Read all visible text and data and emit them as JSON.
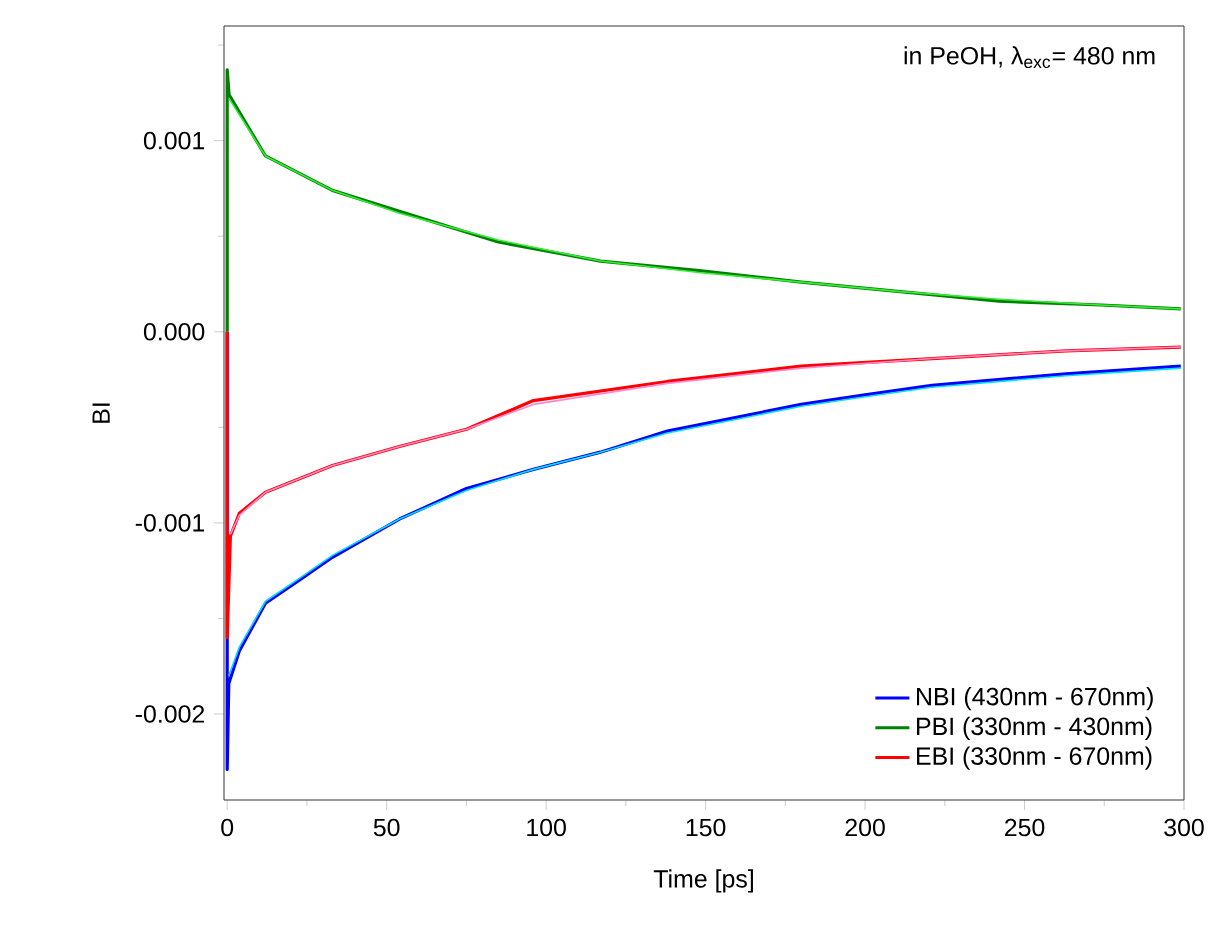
{
  "chart_data": {
    "type": "line",
    "xlabel": "Time [ps]",
    "ylabel": "BI",
    "annotations": [
      "in PeOH, λ$_{exc}$= 480 nm"
    ],
    "xlim": [
      -1,
      300
    ],
    "ylim": [
      -0.00245,
      0.0016
    ],
    "xticks": [
      0,
      {
        "value": 25,
        "label": null
      },
      50,
      {
        "value": 75,
        "label": null
      },
      100,
      {
        "value": 125,
        "label": null
      },
      150,
      {
        "value": 175,
        "label": null
      },
      200,
      {
        "value": 225,
        "label": null
      },
      250,
      {
        "value": 275,
        "label": null
      },
      300
    ],
    "yticks": [
      {
        "value": -0.002,
        "label": "-0.002"
      },
      {
        "value": -0.0015,
        "label": null
      },
      {
        "value": -0.001,
        "label": "-0.001"
      },
      {
        "value": -0.0005,
        "label": null
      },
      {
        "value": 0,
        "label": "0.000"
      },
      {
        "value": 0.0005,
        "label": null
      },
      {
        "value": 0.001,
        "label": "0.001"
      },
      {
        "value": 0.0015,
        "label": null
      }
    ],
    "legend": "bottom right",
    "series": [
      {
        "name": "NBI (430nm - 670nm)",
        "color": "#0000ff",
        "x": [
          0,
          0,
          0.5,
          3.8,
          12,
          22.6,
          33,
          54,
          75,
          96,
          117,
          138,
          159,
          180,
          200,
          221,
          263,
          299
        ],
        "values": [
          0,
          -0.00229,
          -0.00184,
          -0.00167,
          -0.00142,
          -0.0013,
          -0.00118,
          -0.00098,
          -0.00082,
          -0.00072,
          -0.00063,
          -0.00052,
          -0.00045,
          -0.00038,
          -0.00033,
          -0.00028,
          -0.00022,
          -0.00018
        ]
      },
      {
        "name": "PBI (330nm - 430nm)",
        "color": "#008000",
        "x": [
          0,
          0,
          0.6,
          12,
          33,
          54,
          85,
          117,
          148,
          180,
          211,
          242,
          274,
          299
        ],
        "values": [
          0,
          0.00137,
          0.00124,
          0.00092,
          0.00074,
          0.00063,
          0.00047,
          0.00037,
          0.00032,
          0.00026,
          0.00021,
          0.00016,
          0.00014,
          0.00012
        ]
      },
      {
        "name": "EBI (330nm - 670nm)",
        "color": "#ff0000",
        "x": [
          0,
          0,
          1,
          3.8,
          12,
          33,
          54,
          75,
          96,
          138,
          180,
          221,
          263,
          299
        ],
        "values": [
          0,
          -0.0016,
          -0.00107,
          -0.00095,
          -0.00084,
          -0.0007,
          -0.0006,
          -0.00051,
          -0.00036,
          -0.00026,
          -0.00018,
          -0.00014,
          -0.0001,
          -8e-05
        ]
      },
      {
        "color": "#00e0f0",
        "x": [
          0.5,
          3.8,
          12,
          22.6,
          33,
          54,
          75,
          96,
          117,
          138,
          159,
          180,
          200,
          221,
          263,
          299
        ],
        "values": [
          -0.0018,
          -0.00165,
          -0.00141,
          -0.00129,
          -0.00117,
          -0.00098,
          -0.00083,
          -0.00072,
          -0.00063,
          -0.00053,
          -0.00046,
          -0.00039,
          -0.00034,
          -0.00029,
          -0.00023,
          -0.00019
        ]
      },
      {
        "color": "#33ee33",
        "x": [
          0.6,
          12,
          33,
          54,
          85,
          117,
          148,
          180,
          211,
          242,
          274,
          299
        ],
        "values": [
          0.00122,
          0.00092,
          0.00074,
          0.00062,
          0.00048,
          0.00037,
          0.00031,
          0.00026,
          0.00021,
          0.00017,
          0.00014,
          0.00012
        ]
      },
      {
        "color": "#ff88cc",
        "x": [
          1,
          3.8,
          12,
          33,
          54,
          75,
          96,
          138,
          180,
          221,
          263,
          299
        ],
        "values": [
          -0.00106,
          -0.00096,
          -0.00084,
          -0.0007,
          -0.0006,
          -0.00051,
          -0.00038,
          -0.00027,
          -0.00019,
          -0.00014,
          -0.0001,
          -8e-05
        ]
      }
    ]
  }
}
